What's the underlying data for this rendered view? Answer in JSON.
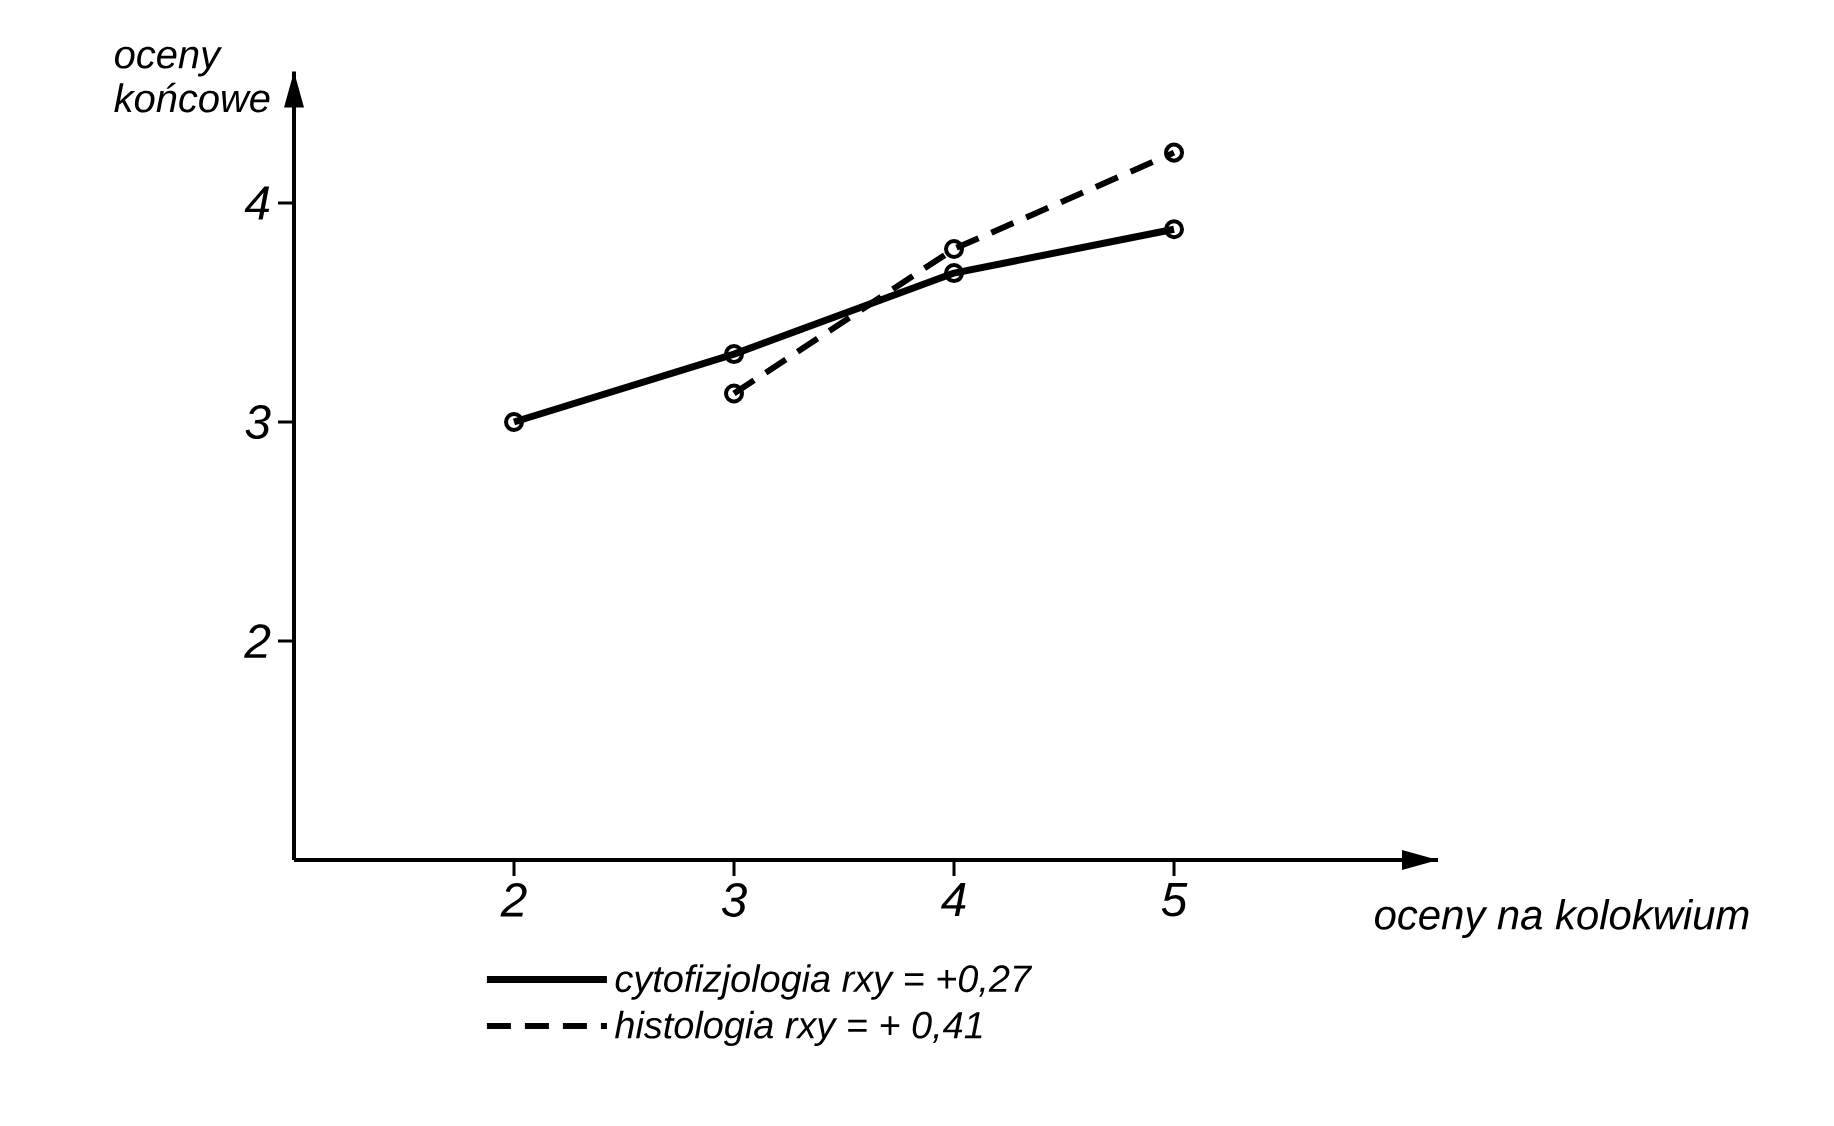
{
  "chart_data": {
    "type": "line",
    "xlabel": "oceny na kolokwium",
    "ylabel": "oceny\nkońcowe",
    "series": [
      {
        "name": "cytofizjologia  rxy = +0,27",
        "color": "#000000",
        "line_style": "solid",
        "x": [
          2,
          3,
          4,
          5
        ],
        "values": [
          3.0,
          3.31,
          3.68,
          3.88
        ]
      },
      {
        "name": "histologia  rxy = + 0,41",
        "color": "#000000",
        "line_style": "dashed",
        "x": [
          3,
          4,
          5
        ],
        "values": [
          3.13,
          3.79,
          4.23
        ]
      }
    ],
    "xlim": [
      1,
      6.2
    ],
    "ylim": [
      1,
      4.6
    ],
    "xticks": [
      2,
      3,
      4,
      5
    ],
    "yticks": [
      2,
      3,
      4
    ],
    "grid": false,
    "legend": "bottom",
    "marker": "circle"
  }
}
